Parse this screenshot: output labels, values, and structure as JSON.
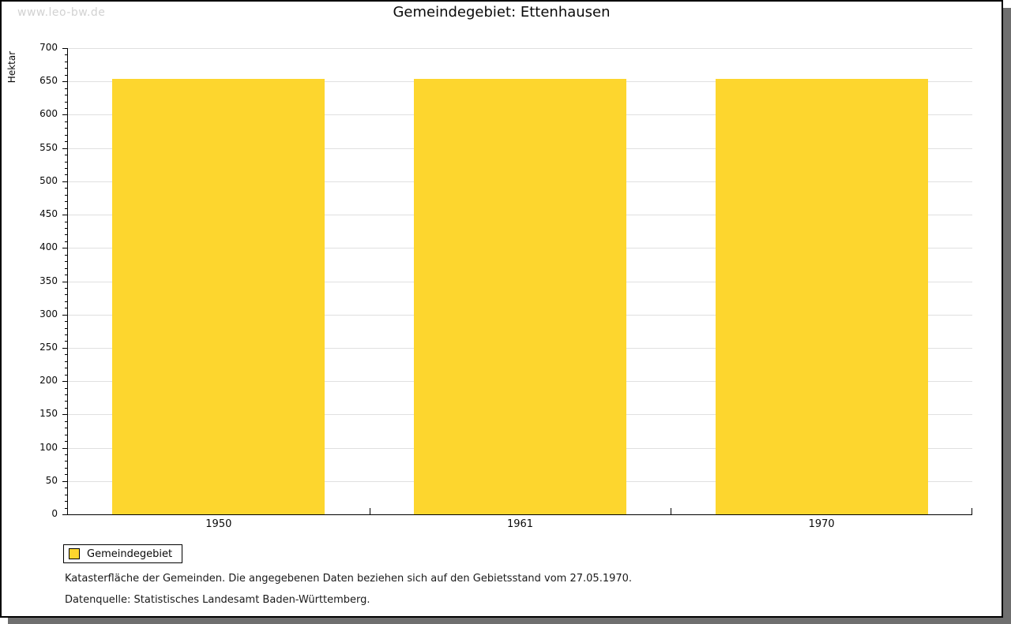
{
  "watermark": "www.leo-bw.de",
  "title": "Gemeindegebiet:  Ettenhausen",
  "legend": {
    "label": "Gemeindegebiet",
    "swatch_color": "#fdd62e"
  },
  "footer": {
    "note": "Katasterfläche der Gemeinden. Die angegebenen Daten beziehen sich auf den Gebietsstand vom 27.05.1970.",
    "source": "Datenquelle: Statistisches Landesamt Baden-Württemberg."
  },
  "chart_data": {
    "type": "bar",
    "title": "Gemeindegebiet: Ettenhausen",
    "categories": [
      "1950",
      "1961",
      "1970"
    ],
    "series": [
      {
        "name": "Gemeindegebiet",
        "values": [
          654,
          654,
          654
        ]
      }
    ],
    "xlabel": "",
    "ylabel": "Hektar",
    "ylim": [
      0,
      700
    ],
    "ytick_major": 50,
    "ytick_minor": 10,
    "grid": true,
    "legend_position": "bottom-left",
    "bar_color": "#fdd62e",
    "gridline_color": "#e0e0e0"
  }
}
